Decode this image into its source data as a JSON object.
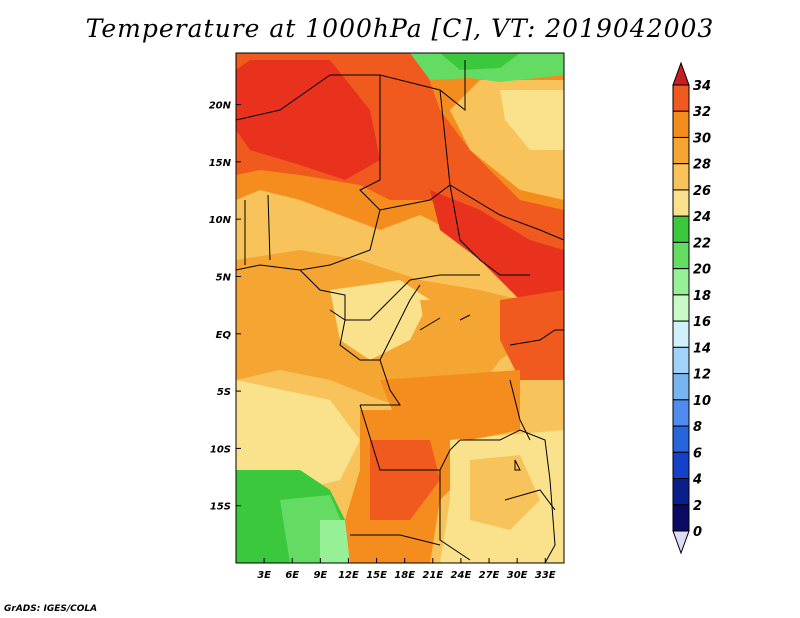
{
  "title": "Temperature at 1000hPa [C], VT: 2019042003",
  "credit": "GrADS: IGES/COLA",
  "map": {
    "lon_range": [
      0,
      35
    ],
    "lat_range": [
      -20,
      24.5
    ],
    "lon_ticks": [
      {
        "value": 3,
        "label": "3E"
      },
      {
        "value": 6,
        "label": "6E"
      },
      {
        "value": 9,
        "label": "9E"
      },
      {
        "value": 12,
        "label": "12E"
      },
      {
        "value": 15,
        "label": "15E"
      },
      {
        "value": 18,
        "label": "18E"
      },
      {
        "value": 21,
        "label": "21E"
      },
      {
        "value": 24,
        "label": "24E"
      },
      {
        "value": 27,
        "label": "27E"
      },
      {
        "value": 30,
        "label": "30E"
      },
      {
        "value": 33,
        "label": "33E"
      }
    ],
    "lat_ticks": [
      {
        "value": 20,
        "label": "20N"
      },
      {
        "value": 15,
        "label": "15N"
      },
      {
        "value": 10,
        "label": "10N"
      },
      {
        "value": 5,
        "label": "5N"
      },
      {
        "value": 0,
        "label": "EQ"
      },
      {
        "value": -5,
        "label": "5S"
      },
      {
        "value": -10,
        "label": "10S"
      },
      {
        "value": -15,
        "label": "15S"
      }
    ]
  },
  "colorbar": {
    "levels": [
      "34",
      "32",
      "30",
      "28",
      "26",
      "24",
      "22",
      "20",
      "18",
      "16",
      "14",
      "12",
      "10",
      "8",
      "6",
      "4",
      "2",
      "0"
    ],
    "colors": [
      "#e8321e",
      "#f05a1e",
      "#f58c1e",
      "#f5a532",
      "#f8c35a",
      "#fae18c",
      "#3cc83c",
      "#64dc64",
      "#96f096",
      "#c8fac8",
      "#d2f0fa",
      "#a0d2fa",
      "#78b4f0",
      "#508cf0",
      "#2864dc",
      "#1441c8",
      "#0a1e8c",
      "#0a0a64",
      "#dcdcf5"
    ],
    "top_color": "#c81e1e",
    "bottom_color": "#dcdcf5"
  }
}
